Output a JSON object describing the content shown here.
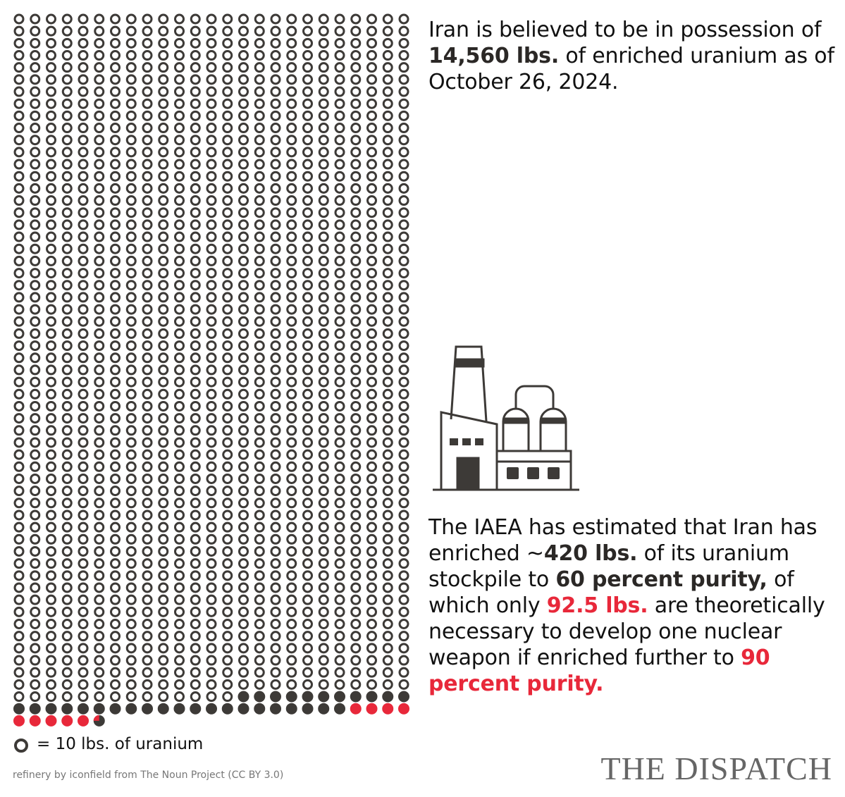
{
  "chart_data": {
    "type": "waffle",
    "unit": 10,
    "total": 14560,
    "enriched": 420,
    "weapon": 92.5,
    "colors": {
      "outline": "#3d3a37",
      "enriched": "#3d3a37",
      "weapon": "#e8283a"
    },
    "text_1": [
      "Iran is believed to be in possession of ",
      "14,560 lbs.",
      " of enriched uranium as of October 26, 2024."
    ],
    "text_2": [
      "The IAEA has estimated that Iran has enriched ~",
      "420 lbs.",
      " of its uranium stockpile to ",
      "60 percent purity,",
      " of which only ",
      "92.5 lbs.",
      " are theoretically necessary to develop one nuclear weapon if enriched further to ",
      "90 percent purity."
    ],
    "legend": "= 10 lbs. of uranium",
    "credit": "refinery by iconfield from The Noun Project (CC BY 3.0)",
    "brand": "THE DISPATCH"
  }
}
